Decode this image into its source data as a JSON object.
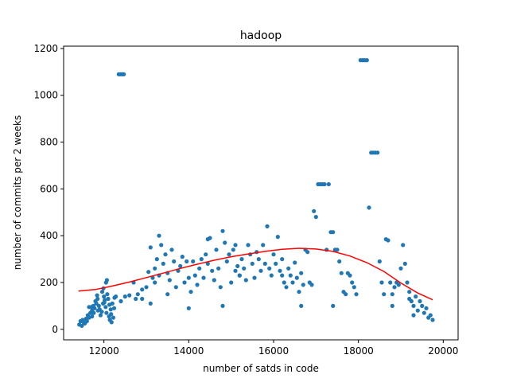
{
  "chart_data": {
    "type": "scatter",
    "title": "hadoop",
    "xlabel": "number of satds in code",
    "ylabel": "number of commits per 2 weeks",
    "xlim": [
      11050,
      20350
    ],
    "ylim": [
      -45,
      1210
    ],
    "xticks": [
      12000,
      14000,
      16000,
      18000,
      20000
    ],
    "yticks": [
      0,
      200,
      400,
      600,
      800,
      1000,
      1200
    ],
    "grid": false,
    "colors": {
      "points": "#1f77b4",
      "fit": "#ff0000"
    },
    "series": [
      {
        "kind": "points",
        "points": [
          [
            11420,
            20
          ],
          [
            11450,
            35
          ],
          [
            11480,
            15
          ],
          [
            11500,
            40
          ],
          [
            11520,
            30
          ],
          [
            11550,
            25
          ],
          [
            11580,
            45
          ],
          [
            11600,
            35
          ],
          [
            11620,
            60
          ],
          [
            11650,
            50
          ],
          [
            11680,
            70
          ],
          [
            11700,
            95
          ],
          [
            11720,
            80
          ],
          [
            11750,
            100
          ],
          [
            11780,
            90
          ],
          [
            11800,
            120
          ],
          [
            11820,
            110
          ],
          [
            11850,
            130
          ],
          [
            11880,
            100
          ],
          [
            11900,
            85
          ],
          [
            11920,
            60
          ],
          [
            11950,
            75
          ],
          [
            11980,
            110
          ],
          [
            12000,
            140
          ],
          [
            12020,
            125
          ],
          [
            12040,
            95
          ],
          [
            12060,
            70
          ],
          [
            12080,
            150
          ],
          [
            12100,
            130
          ],
          [
            12120,
            55
          ],
          [
            12140,
            40
          ],
          [
            12160,
            85
          ],
          [
            12180,
            30
          ],
          [
            12200,
            110
          ],
          [
            12220,
            50
          ],
          [
            12240,
            90
          ],
          [
            12050,
            200
          ],
          [
            12070,
            210
          ],
          [
            11860,
            80
          ],
          [
            11840,
            145
          ],
          [
            11960,
            160
          ],
          [
            11990,
            175
          ],
          [
            12010,
            115
          ],
          [
            12130,
            105
          ],
          [
            12170,
            65
          ],
          [
            12250,
            135
          ],
          [
            12280,
            140
          ],
          [
            11760,
            70
          ],
          [
            11720,
            55
          ],
          [
            11650,
            95
          ],
          [
            12350,
            1090
          ],
          [
            12380,
            1090
          ],
          [
            12410,
            1090
          ],
          [
            12440,
            1090
          ],
          [
            12470,
            1090
          ],
          [
            12400,
            120
          ],
          [
            12500,
            140
          ],
          [
            12600,
            145
          ],
          [
            12700,
            200
          ],
          [
            12750,
            130
          ],
          [
            12800,
            150
          ],
          [
            12900,
            170
          ],
          [
            13000,
            180
          ],
          [
            13050,
            245
          ],
          [
            13100,
            350
          ],
          [
            13150,
            220
          ],
          [
            13200,
            260
          ],
          [
            13250,
            300
          ],
          [
            13300,
            230
          ],
          [
            13350,
            360
          ],
          [
            13400,
            280
          ],
          [
            13450,
            320
          ],
          [
            13500,
            240
          ],
          [
            13550,
            210
          ],
          [
            13600,
            340
          ],
          [
            13650,
            290
          ],
          [
            13700,
            180
          ],
          [
            13750,
            250
          ],
          [
            13800,
            270
          ],
          [
            13850,
            310
          ],
          [
            13900,
            200
          ],
          [
            13950,
            290
          ],
          [
            14000,
            220
          ],
          [
            14050,
            160
          ],
          [
            14100,
            290
          ],
          [
            14150,
            230
          ],
          [
            14200,
            190
          ],
          [
            14250,
            260
          ],
          [
            14300,
            300
          ],
          [
            14350,
            220
          ],
          [
            14400,
            320
          ],
          [
            14450,
            280
          ],
          [
            14500,
            390
          ],
          [
            14550,
            250
          ],
          [
            14600,
            210
          ],
          [
            14650,
            340
          ],
          [
            14700,
            260
          ],
          [
            14750,
            180
          ],
          [
            14800,
            420
          ],
          [
            14850,
            370
          ],
          [
            14900,
            290
          ],
          [
            14950,
            320
          ],
          [
            15000,
            200
          ],
          [
            15050,
            340
          ],
          [
            15100,
            250
          ],
          [
            15150,
            270
          ],
          [
            15200,
            230
          ],
          [
            15250,
            300
          ],
          [
            15300,
            260
          ],
          [
            15350,
            210
          ],
          [
            15400,
            360
          ],
          [
            15450,
            320
          ],
          [
            15500,
            280
          ],
          [
            15550,
            220
          ],
          [
            15600,
            330
          ],
          [
            15650,
            300
          ],
          [
            15700,
            250
          ],
          [
            15750,
            360
          ],
          [
            15800,
            280
          ],
          [
            15850,
            440
          ],
          [
            15900,
            260
          ],
          [
            15950,
            230
          ],
          [
            16000,
            320
          ],
          [
            16050,
            280
          ],
          [
            16100,
            395
          ],
          [
            16150,
            250
          ],
          [
            16200,
            300
          ],
          [
            16250,
            200
          ],
          [
            16300,
            180
          ],
          [
            16350,
            260
          ],
          [
            16400,
            230
          ],
          [
            16450,
            200
          ],
          [
            16500,
            285
          ],
          [
            16550,
            220
          ],
          [
            16600,
            160
          ],
          [
            16650,
            240
          ],
          [
            16700,
            190
          ],
          [
            16750,
            340
          ],
          [
            16800,
            330
          ],
          [
            16850,
            200
          ],
          [
            16900,
            190
          ],
          [
            16950,
            505
          ],
          [
            17000,
            480
          ],
          [
            17050,
            620
          ],
          [
            17100,
            620
          ],
          [
            17150,
            620
          ],
          [
            17200,
            620
          ],
          [
            17250,
            340
          ],
          [
            17300,
            620
          ],
          [
            17350,
            415
          ],
          [
            17400,
            415
          ],
          [
            17450,
            340
          ],
          [
            17500,
            340
          ],
          [
            17550,
            290
          ],
          [
            17600,
            240
          ],
          [
            17650,
            160
          ],
          [
            17700,
            150
          ],
          [
            17750,
            240
          ],
          [
            17800,
            230
          ],
          [
            17850,
            200
          ],
          [
            17900,
            180
          ],
          [
            17950,
            150
          ],
          [
            18050,
            1150
          ],
          [
            18100,
            1150
          ],
          [
            18150,
            1150
          ],
          [
            18200,
            1150
          ],
          [
            18250,
            520
          ],
          [
            18300,
            755
          ],
          [
            18350,
            755
          ],
          [
            18400,
            755
          ],
          [
            18450,
            755
          ],
          [
            18500,
            290
          ],
          [
            18550,
            200
          ],
          [
            18600,
            150
          ],
          [
            18650,
            385
          ],
          [
            18700,
            380
          ],
          [
            18750,
            200
          ],
          [
            18800,
            150
          ],
          [
            18850,
            180
          ],
          [
            18900,
            200
          ],
          [
            18950,
            190
          ],
          [
            19000,
            260
          ],
          [
            19050,
            360
          ],
          [
            19100,
            280
          ],
          [
            19150,
            200
          ],
          [
            19200,
            160
          ],
          [
            19250,
            120
          ],
          [
            19300,
            100
          ],
          [
            19350,
            140
          ],
          [
            19400,
            80
          ],
          [
            19450,
            120
          ],
          [
            19500,
            100
          ],
          [
            19550,
            70
          ],
          [
            19600,
            90
          ],
          [
            19650,
            50
          ],
          [
            19700,
            60
          ],
          [
            19750,
            40
          ],
          [
            14000,
            90
          ],
          [
            13100,
            110
          ],
          [
            12900,
            130
          ],
          [
            13500,
            150
          ],
          [
            14800,
            100
          ],
          [
            16650,
            100
          ],
          [
            17400,
            100
          ],
          [
            15200,
            230
          ],
          [
            16200,
            230
          ],
          [
            13200,
            200
          ],
          [
            18800,
            100
          ],
          [
            19300,
            60
          ],
          [
            19200,
            130
          ],
          [
            13300,
            400
          ],
          [
            14450,
            385
          ],
          [
            15100,
            360
          ]
        ]
      },
      {
        "kind": "fit",
        "x": [
          11400,
          11800,
          12200,
          12600,
          13000,
          13400,
          13800,
          14200,
          14600,
          15000,
          15400,
          15800,
          16200,
          16600,
          17000,
          17400,
          17800,
          18200,
          18600,
          19000,
          19400,
          19750
        ],
        "y": [
          163,
          170,
          185,
          202,
          221,
          240,
          260,
          278,
          295,
          310,
          322,
          333,
          342,
          346,
          343,
          333,
          313,
          285,
          247,
          198,
          155,
          126
        ]
      }
    ]
  }
}
